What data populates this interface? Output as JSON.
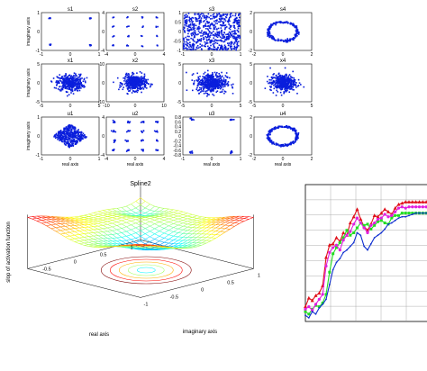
{
  "colors": {
    "marker": "#0a1edc",
    "axis": "#000000",
    "grid": "#999999",
    "red": "#e0101a",
    "green": "#22dd22",
    "magenta": "#e020e0",
    "blue": "#1030d0"
  },
  "chart_data": [
    {
      "type": "scatter",
      "title": "Constellation scatter grid (3 rows x 4 columns)",
      "xlabel": "real axis",
      "ylabel": "imaginary axis",
      "panels": [
        {
          "row": 0,
          "col": 0,
          "title": "s1",
          "xlim": [
            -1,
            1
          ],
          "ylim": [
            -1,
            1
          ],
          "xticks": [
            "-1",
            "0",
            "1"
          ],
          "yticks": [
            "1",
            "0",
            "-1"
          ],
          "pattern": {
            "kind": "clusters",
            "points": [
              [
                -0.7,
                0.7
              ],
              [
                0.7,
                0.7
              ],
              [
                -0.7,
                -0.7
              ],
              [
                0.7,
                -0.7
              ]
            ],
            "spread": 0.02,
            "n": 6
          }
        },
        {
          "row": 0,
          "col": 1,
          "title": "s2",
          "xlim": [
            -4,
            4
          ],
          "ylim": [
            -4,
            4
          ],
          "xticks": [
            "-4",
            "0",
            "4"
          ],
          "yticks": [
            "4",
            "0",
            "-4"
          ],
          "pattern": {
            "kind": "clusters",
            "grid": [
              -3,
              -1,
              1,
              3
            ],
            "spread": 0.08,
            "n": 3
          }
        },
        {
          "row": 0,
          "col": 2,
          "title": "s3",
          "xlim": [
            -1,
            1
          ],
          "ylim": [
            -1,
            1
          ],
          "xticks": [
            "-1",
            "0",
            "1"
          ],
          "yticks": [
            "1",
            "0.5",
            "0",
            "-0.5",
            "-1"
          ],
          "pattern": {
            "kind": "uniform",
            "n": 700
          }
        },
        {
          "row": 0,
          "col": 3,
          "title": "s4",
          "xlim": [
            -2,
            2
          ],
          "ylim": [
            -2,
            2
          ],
          "xticks": [
            "-2",
            "0",
            "2"
          ],
          "yticks": [
            "2",
            "0",
            "-2"
          ],
          "pattern": {
            "kind": "ring",
            "r": 1.0,
            "spread": 0.06,
            "n": 220
          }
        },
        {
          "row": 1,
          "col": 0,
          "title": "x1",
          "xlim": [
            -5,
            5
          ],
          "ylim": [
            -5,
            5
          ],
          "xticks": [
            "-5",
            "0",
            "5"
          ],
          "yticks": [
            "5",
            "0",
            "-5"
          ],
          "pattern": {
            "kind": "gauss",
            "sigma": 1.1,
            "n": 420
          }
        },
        {
          "row": 1,
          "col": 1,
          "title": "x2",
          "xlim": [
            -10,
            10
          ],
          "ylim": [
            -10,
            10
          ],
          "xticks": [
            "-10",
            "0",
            "10"
          ],
          "yticks": [
            "10",
            "0",
            "-10"
          ],
          "pattern": {
            "kind": "gauss",
            "sigma": 2.0,
            "n": 420
          }
        },
        {
          "row": 1,
          "col": 2,
          "title": "x3",
          "xlim": [
            -5,
            5
          ],
          "ylim": [
            -5,
            5
          ],
          "xticks": [
            "-5",
            "0",
            "5"
          ],
          "yticks": [
            "5",
            "0",
            "-5"
          ],
          "pattern": {
            "kind": "gauss",
            "sigma": 1.3,
            "n": 480
          }
        },
        {
          "row": 1,
          "col": 3,
          "title": "x4",
          "xlim": [
            -5,
            5
          ],
          "ylim": [
            -5,
            5
          ],
          "xticks": [
            "-5",
            "0",
            "5"
          ],
          "yticks": [
            "5",
            "0",
            "-5"
          ],
          "pattern": {
            "kind": "gauss",
            "sigma": 1.1,
            "n": 420
          }
        },
        {
          "row": 2,
          "col": 0,
          "title": "u1",
          "xlim": [
            -1,
            1
          ],
          "ylim": [
            -1,
            1
          ],
          "xticks": [
            "-1",
            "0",
            "1"
          ],
          "yticks": [
            "1",
            "0",
            "-1"
          ],
          "pattern": {
            "kind": "diamond",
            "size": 0.45,
            "n": 420
          }
        },
        {
          "row": 2,
          "col": 1,
          "title": "u2",
          "xlim": [
            -4,
            4
          ],
          "ylim": [
            -4,
            4
          ],
          "xticks": [
            "-4",
            "0",
            "4"
          ],
          "yticks": [
            "4",
            "0",
            "-4"
          ],
          "pattern": {
            "kind": "clusters",
            "grid": [
              -3,
              -1,
              1,
              3
            ],
            "spread": 0.12,
            "n": 6
          }
        },
        {
          "row": 2,
          "col": 2,
          "title": "u3",
          "xlim": [
            -1,
            1
          ],
          "ylim": [
            -0.8,
            0.8
          ],
          "xticks": [
            "-1",
            "0",
            "1"
          ],
          "yticks": [
            "0.8",
            "0.6",
            "0.4",
            "0.2",
            "0",
            "-0.2",
            "-0.4",
            "-0.6",
            "-0.8"
          ],
          "pattern": {
            "kind": "clusters",
            "points": [
              [
                -0.7,
                0.7
              ],
              [
                0.7,
                0.7
              ],
              [
                -0.7,
                -0.7
              ],
              [
                0.7,
                -0.7
              ]
            ],
            "spread": 0.03,
            "n": 8
          }
        },
        {
          "row": 2,
          "col": 3,
          "title": "u4",
          "xlim": [
            -2,
            2
          ],
          "ylim": [
            -2,
            2
          ],
          "xticks": [
            "-2",
            "0",
            "2"
          ],
          "yticks": [
            "2",
            "0",
            "-2"
          ],
          "pattern": {
            "kind": "ring",
            "r": 1.0,
            "spread": 0.05,
            "n": 260
          }
        }
      ]
    },
    {
      "type": "surface",
      "title": "Spline2",
      "xlabel": "real axis",
      "ylabel": "imaginary axis",
      "zlabel": "slop of activation function",
      "xticks": [
        "-0.5",
        "0",
        "0.5",
        "1"
      ],
      "yticks": [
        "-1",
        "-0.5",
        "0",
        "0.5",
        "1"
      ]
    },
    {
      "type": "line",
      "xlim": [
        0,
        36
      ],
      "ylim": [
        0,
        1
      ],
      "series": [
        {
          "color": "red",
          "marker": "triangle",
          "values": [
            0.12,
            0.19,
            0.17,
            0.21,
            0.23,
            0.29,
            0.52,
            0.62,
            0.63,
            0.68,
            0.65,
            0.72,
            0.7,
            0.8,
            0.85,
            0.91,
            0.83,
            0.77,
            0.74,
            0.79,
            0.86,
            0.85,
            0.88,
            0.91,
            0.89,
            0.87,
            0.92,
            0.95,
            0.96,
            0.97,
            0.97,
            0.97,
            0.97,
            0.97,
            0.97,
            0.97
          ]
        },
        {
          "color": "green",
          "marker": "square",
          "values": [
            0.08,
            0.06,
            0.1,
            0.13,
            0.12,
            0.15,
            0.22,
            0.4,
            0.55,
            0.6,
            0.64,
            0.68,
            0.74,
            0.7,
            0.72,
            0.76,
            0.8,
            0.78,
            0.79,
            0.75,
            0.78,
            0.81,
            0.82,
            0.8,
            0.79,
            0.84,
            0.86,
            0.86,
            0.88,
            0.88,
            0.88,
            0.88,
            0.88,
            0.88,
            0.88,
            0.88
          ]
        },
        {
          "color": "magenta",
          "marker": "circle",
          "values": [
            0.1,
            0.12,
            0.09,
            0.14,
            0.18,
            0.22,
            0.45,
            0.56,
            0.6,
            0.62,
            0.58,
            0.66,
            0.7,
            0.73,
            0.79,
            0.84,
            0.8,
            0.76,
            0.72,
            0.78,
            0.8,
            0.83,
            0.84,
            0.87,
            0.85,
            0.86,
            0.89,
            0.92,
            0.93,
            0.92,
            0.93,
            0.93,
            0.93,
            0.93,
            0.93,
            0.93
          ]
        },
        {
          "color": "blue",
          "marker": "dot",
          "values": [
            0.05,
            0.03,
            0.08,
            0.06,
            0.11,
            0.14,
            0.18,
            0.3,
            0.42,
            0.48,
            0.51,
            0.56,
            0.58,
            0.61,
            0.64,
            0.72,
            0.7,
            0.61,
            0.58,
            0.63,
            0.68,
            0.7,
            0.72,
            0.75,
            0.79,
            0.8,
            0.82,
            0.84,
            0.85,
            0.85,
            0.86,
            0.87,
            0.88,
            0.88,
            0.88,
            0.88
          ]
        }
      ]
    }
  ]
}
